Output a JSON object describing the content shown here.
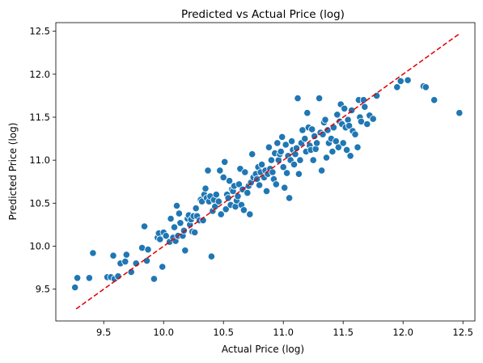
{
  "chart_data": {
    "type": "scatter",
    "title": "Predicted vs Actual Price (log)",
    "xlabel": "Actual Price (log)",
    "ylabel": "Predicted Price (log)",
    "xlim": [
      9.1,
      12.6
    ],
    "ylim": [
      9.13,
      12.6
    ],
    "xticks": [
      "9.5",
      "10.0",
      "10.5",
      "11.0",
      "11.5",
      "12.0",
      "12.5"
    ],
    "yticks": [
      "9.5",
      "10.0",
      "10.5",
      "11.0",
      "11.5",
      "12.0",
      "12.5"
    ],
    "grid": false,
    "point_color": "#1f77b4",
    "reference_line": {
      "x": [
        9.27,
        12.47
      ],
      "y": [
        9.27,
        12.47
      ],
      "color": "#e00000",
      "style": "dashed"
    },
    "points": [
      [
        9.26,
        9.52
      ],
      [
        9.28,
        9.63
      ],
      [
        9.38,
        9.63
      ],
      [
        9.41,
        9.92
      ],
      [
        9.53,
        9.64
      ],
      [
        9.56,
        9.64
      ],
      [
        9.58,
        9.89
      ],
      [
        9.59,
        9.62
      ],
      [
        9.62,
        9.65
      ],
      [
        9.64,
        9.8
      ],
      [
        9.68,
        9.82
      ],
      [
        9.69,
        9.9
      ],
      [
        9.73,
        9.7
      ],
      [
        9.77,
        9.8
      ],
      [
        9.82,
        9.98
      ],
      [
        9.84,
        10.23
      ],
      [
        9.86,
        9.83
      ],
      [
        9.87,
        9.96
      ],
      [
        9.92,
        9.62
      ],
      [
        9.95,
        10.1
      ],
      [
        9.96,
        10.15
      ],
      [
        9.97,
        10.08
      ],
      [
        9.99,
        9.76
      ],
      [
        10.0,
        10.16
      ],
      [
        10.02,
        10.12
      ],
      [
        10.05,
        10.05
      ],
      [
        10.06,
        10.32
      ],
      [
        10.08,
        10.1
      ],
      [
        10.09,
        10.22
      ],
      [
        10.1,
        10.06
      ],
      [
        10.11,
        10.47
      ],
      [
        10.12,
        10.12
      ],
      [
        10.13,
        10.38
      ],
      [
        10.14,
        10.27
      ],
      [
        10.16,
        10.12
      ],
      [
        10.17,
        10.18
      ],
      [
        10.18,
        9.95
      ],
      [
        10.2,
        10.32
      ],
      [
        10.21,
        10.36
      ],
      [
        10.22,
        10.25
      ],
      [
        10.23,
        10.31
      ],
      [
        10.24,
        10.17
      ],
      [
        10.25,
        10.35
      ],
      [
        10.26,
        10.16
      ],
      [
        10.27,
        10.44
      ],
      [
        10.28,
        10.35
      ],
      [
        10.3,
        10.3
      ],
      [
        10.31,
        10.54
      ],
      [
        10.32,
        10.52
      ],
      [
        10.33,
        10.3
      ],
      [
        10.34,
        10.6
      ],
      [
        10.35,
        10.67
      ],
      [
        10.36,
        10.56
      ],
      [
        10.37,
        10.88
      ],
      [
        10.38,
        10.52
      ],
      [
        10.39,
        10.58
      ],
      [
        10.4,
        9.88
      ],
      [
        10.41,
        10.41
      ],
      [
        10.42,
        10.54
      ],
      [
        10.43,
        10.46
      ],
      [
        10.44,
        10.6
      ],
      [
        10.46,
        10.52
      ],
      [
        10.47,
        10.88
      ],
      [
        10.48,
        10.37
      ],
      [
        10.5,
        10.8
      ],
      [
        10.51,
        10.98
      ],
      [
        10.52,
        10.43
      ],
      [
        10.53,
        10.6
      ],
      [
        10.54,
        10.56
      ],
      [
        10.55,
        10.76
      ],
      [
        10.56,
        10.48
      ],
      [
        10.57,
        10.66
      ],
      [
        10.58,
        10.64
      ],
      [
        10.59,
        10.7
      ],
      [
        10.6,
        10.46
      ],
      [
        10.61,
        10.53
      ],
      [
        10.62,
        10.58
      ],
      [
        10.63,
        10.72
      ],
      [
        10.64,
        10.9
      ],
      [
        10.65,
        10.48
      ],
      [
        10.66,
        10.66
      ],
      [
        10.67,
        10.42
      ],
      [
        10.68,
        10.86
      ],
      [
        10.7,
        10.62
      ],
      [
        10.71,
        10.7
      ],
      [
        10.72,
        10.37
      ],
      [
        10.73,
        10.74
      ],
      [
        10.74,
        11.07
      ],
      [
        10.75,
        10.8
      ],
      [
        10.77,
        10.84
      ],
      [
        10.78,
        10.78
      ],
      [
        10.79,
        10.92
      ],
      [
        10.8,
        10.71
      ],
      [
        10.81,
        10.86
      ],
      [
        10.82,
        10.95
      ],
      [
        10.84,
        10.8
      ],
      [
        10.85,
        10.88
      ],
      [
        10.86,
        10.64
      ],
      [
        10.87,
        10.84
      ],
      [
        10.88,
        11.15
      ],
      [
        10.89,
        10.9
      ],
      [
        10.9,
        11.0
      ],
      [
        10.91,
        10.86
      ],
      [
        10.92,
        10.78
      ],
      [
        10.93,
        11.08
      ],
      [
        10.94,
        10.72
      ],
      [
        10.95,
        11.2
      ],
      [
        10.96,
        11.0
      ],
      [
        10.97,
        11.07
      ],
      [
        10.98,
        11.1
      ],
      [
        10.99,
        11.27
      ],
      [
        11.0,
        10.92
      ],
      [
        11.01,
        10.68
      ],
      [
        11.02,
        11.18
      ],
      [
        11.03,
        10.85
      ],
      [
        11.04,
        11.05
      ],
      [
        11.05,
        10.56
      ],
      [
        11.06,
        11.0
      ],
      [
        11.07,
        11.22
      ],
      [
        11.08,
        11.12
      ],
      [
        11.09,
        10.95
      ],
      [
        11.1,
        11.07
      ],
      [
        11.11,
        11.14
      ],
      [
        11.12,
        11.72
      ],
      [
        11.13,
        10.84
      ],
      [
        11.14,
        11.0
      ],
      [
        11.15,
        11.2
      ],
      [
        11.16,
        11.35
      ],
      [
        11.18,
        11.25
      ],
      [
        11.19,
        11.1
      ],
      [
        11.2,
        11.55
      ],
      [
        11.21,
        11.38
      ],
      [
        11.22,
        11.17
      ],
      [
        11.23,
        11.12
      ],
      [
        11.24,
        11.36
      ],
      [
        11.25,
        11.0
      ],
      [
        11.26,
        11.28
      ],
      [
        11.27,
        11.13
      ],
      [
        11.28,
        11.2
      ],
      [
        11.3,
        11.72
      ],
      [
        11.31,
        11.32
      ],
      [
        11.32,
        10.88
      ],
      [
        11.33,
        11.3
      ],
      [
        11.34,
        11.44
      ],
      [
        11.35,
        11.47
      ],
      [
        11.36,
        11.03
      ],
      [
        11.37,
        11.35
      ],
      [
        11.38,
        11.2
      ],
      [
        11.4,
        11.25
      ],
      [
        11.41,
        11.1
      ],
      [
        11.42,
        11.38
      ],
      [
        11.44,
        11.22
      ],
      [
        11.45,
        11.53
      ],
      [
        11.46,
        11.15
      ],
      [
        11.47,
        11.45
      ],
      [
        11.48,
        11.65
      ],
      [
        11.49,
        11.42
      ],
      [
        11.5,
        11.2
      ],
      [
        11.51,
        11.6
      ],
      [
        11.52,
        11.38
      ],
      [
        11.53,
        11.12
      ],
      [
        11.54,
        11.47
      ],
      [
        11.55,
        11.4
      ],
      [
        11.56,
        11.05
      ],
      [
        11.57,
        11.58
      ],
      [
        11.58,
        11.34
      ],
      [
        11.6,
        11.3
      ],
      [
        11.62,
        11.15
      ],
      [
        11.63,
        11.7
      ],
      [
        11.64,
        11.5
      ],
      [
        11.65,
        11.45
      ],
      [
        11.67,
        11.7
      ],
      [
        11.68,
        11.62
      ],
      [
        11.7,
        11.42
      ],
      [
        11.72,
        11.52
      ],
      [
        11.75,
        11.48
      ],
      [
        11.78,
        11.75
      ],
      [
        11.95,
        11.85
      ],
      [
        11.98,
        11.92
      ],
      [
        12.04,
        11.93
      ],
      [
        12.17,
        11.86
      ],
      [
        12.19,
        11.85
      ],
      [
        12.26,
        11.7
      ],
      [
        12.47,
        11.55
      ]
    ]
  }
}
